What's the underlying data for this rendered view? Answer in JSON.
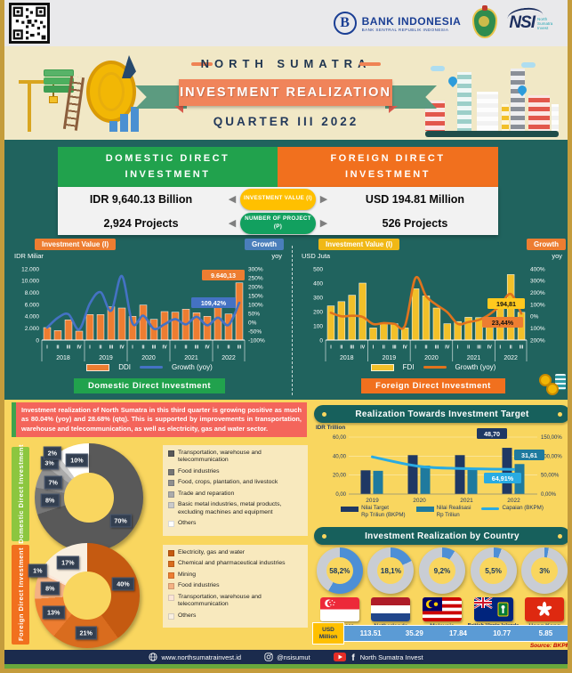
{
  "header": {
    "bank_indonesia": "BANK INDONESIA",
    "bank_indonesia_sub": "BANK SENTRAL REPUBLIK INDONESIA",
    "nsi": "NSI",
    "nsi_sub": "North Sumatra Invest"
  },
  "title": {
    "region": "NORTH SUMATRA",
    "main": "INVESTMENT REALIZATION",
    "quarter": "QUARTER III 2022"
  },
  "comparison": {
    "ddi_title": "DOMESTIC DIRECT INVESTMENT",
    "fdi_title": "FOREIGN DIRECT INVESTMENT",
    "investment_pill": "INVESTMENT VALUE (I)",
    "project_pill": "NUMBER OF PROJECT (P)",
    "ddi_value": "IDR 9,640.13 Billion",
    "fdi_value": "USD 194.81 Million",
    "ddi_projects": "2,924 Projects",
    "fdi_projects": "526 Projects"
  },
  "notice": "Investment realization of North Sumatra in this third quarter is growing positive as much as 80.04% (yoy) and 28.68% (qtq). This is supported by improvements in transportation, warehouse and telecommunication, as well as electricity, gas and water sector.",
  "source": "Source: BKPM",
  "footer": {
    "website": "www.northsumatrainvest.id",
    "instagram": "@nsisumut",
    "social": "North Sumatra Invest"
  },
  "chart_data": [
    {
      "id": "ddi_quarterly",
      "type": "bar",
      "title_badge": "Investment Value (I)",
      "growth_badge": "Growth",
      "growth_unit": "yoy",
      "unit": "IDR Miliar",
      "footer": "Domestic Direct Investment",
      "years": [
        "2018",
        "2019",
        "2020",
        "2021",
        "2022"
      ],
      "quarters": [
        "I",
        "II",
        "III",
        "IV",
        "I",
        "II",
        "III",
        "IV",
        "I",
        "II",
        "III",
        "IV",
        "I",
        "II",
        "III",
        "IV",
        "I",
        "II",
        "III"
      ],
      "series": [
        {
          "name": "DDI",
          "values": [
            2100,
            1600,
            3400,
            1500,
            4300,
            4300,
            5600,
            5400,
            4000,
            5900,
            3500,
            4800,
            4700,
            5200,
            4600,
            4000,
            5900,
            4400,
            9640.13
          ]
        },
        {
          "name": "Growth (yoy)",
          "values": [
            -30,
            25,
            45,
            -40,
            105,
            169,
            65,
            260,
            -7,
            37,
            -37,
            -11,
            18,
            -12,
            31,
            -17,
            26,
            -15,
            109.42
          ]
        }
      ],
      "ylim": [
        0,
        12000
      ],
      "y2lim": [
        -100,
        300
      ],
      "yticks": [
        "12.000",
        "10.000",
        "8.000",
        "6.000",
        "4.000",
        "2.000",
        "0"
      ],
      "y2ticks": [
        "300%",
        "250%",
        "200%",
        "150%",
        "100%",
        "50%",
        "0%",
        "-50%",
        "-100%"
      ],
      "callout_value": "9.640,13",
      "callout_growth": "109,42%"
    },
    {
      "id": "fdi_quarterly",
      "type": "bar",
      "title_badge": "Investment Value (I)",
      "growth_badge": "Growth",
      "growth_unit": "yoy",
      "unit": "USD Juta",
      "footer": "Foreign Direct Investment",
      "years": [
        "2018",
        "2019",
        "2020",
        "2021",
        "2022"
      ],
      "quarters": [
        "I",
        "II",
        "III",
        "IV",
        "I",
        "II",
        "III",
        "IV",
        "I",
        "II",
        "III",
        "IV",
        "I",
        "II",
        "III",
        "IV",
        "I",
        "II",
        "III"
      ],
      "series": [
        {
          "name": "FDI",
          "values": [
            240,
            270,
            315,
            400,
            85,
            115,
            115,
            85,
            360,
            310,
            225,
            115,
            130,
            160,
            158,
            135,
            250,
            460,
            194.81
          ]
        },
        {
          "name": "Growth (yoy)",
          "values": [
            30,
            0,
            5,
            -5,
            -65,
            -57,
            -63,
            -79,
            324,
            170,
            96,
            35,
            -64,
            -48,
            -30,
            17,
            92,
            188,
            23.44
          ]
        }
      ],
      "ylim": [
        0,
        500
      ],
      "y2lim": [
        -200,
        400
      ],
      "yticks": [
        "500",
        "400",
        "300",
        "200",
        "100",
        "0"
      ],
      "y2ticks": [
        "400%",
        "300%",
        "200%",
        "100%",
        "0%",
        "100%",
        "200%"
      ],
      "callout_value": "194,81",
      "callout_growth": "23,44%"
    },
    {
      "id": "realization_target",
      "type": "bar",
      "title": "Realization Towards Investment Target",
      "unit": "IDR Trillion",
      "categories": [
        "2019",
        "2020",
        "2021",
        "2022"
      ],
      "series": [
        {
          "name": "Nilai Target|Rp Triliun (BKPM)",
          "values": [
            25,
            41,
            41,
            48.7
          ]
        },
        {
          "name": "Nilai Realisasi|Rp Triliun",
          "values": [
            24.5,
            30,
            27.5,
            31.61
          ]
        },
        {
          "name": "Capaian (BKPM)",
          "values": [
            98,
            73,
            67,
            64.91
          ]
        }
      ],
      "ylim": [
        0,
        60
      ],
      "y2lim": [
        0,
        150
      ],
      "yticks": [
        "60,00",
        "40,00",
        "20,00",
        "0,00"
      ],
      "y2ticks": [
        "150,00%",
        "100,00%",
        "50,00%",
        "0,00%"
      ],
      "callouts": {
        "target": "48,70",
        "realization": "31,61",
        "capaian": "64,91%"
      }
    },
    {
      "id": "ddi_sectors",
      "type": "pie",
      "side_label": "Domestic Direct Investment",
      "segments": [
        {
          "label": "Transportation, warehouse and telecommunication",
          "value": 70,
          "display": "70%",
          "color": "#595959"
        },
        {
          "label": "Food industries",
          "value": 8,
          "display": "8%",
          "color": "#767676"
        },
        {
          "label": "Food, crops, plantation, and livestock",
          "value": 7,
          "display": "7%",
          "color": "#8F8F8F"
        },
        {
          "label": "Trade and reparation",
          "value": 3,
          "display": "3%",
          "color": "#ABABAB"
        },
        {
          "label": "Basic metal industries, metal products, excluding machines and equipment",
          "value": 2,
          "display": "2%",
          "color": "#CACACA"
        },
        {
          "label": "Others",
          "value": 10,
          "display": "10%",
          "color": "#FFFFFF"
        }
      ]
    },
    {
      "id": "fdi_sectors",
      "type": "pie",
      "side_label": "Foreign Direct Investment",
      "segments": [
        {
          "label": "Electricity, gas and water",
          "value": 40,
          "display": "40%",
          "color": "#C55A11"
        },
        {
          "label": "Chemical and pharmaceutical industries",
          "value": 21,
          "display": "21%",
          "color": "#D96C1E"
        },
        {
          "label": "Mining",
          "value": 13,
          "display": "13%",
          "color": "#ED7D31"
        },
        {
          "label": "Food industries",
          "value": 8,
          "display": "8%",
          "color": "#F4B183"
        },
        {
          "label": "Transportation, warehouse and telecommunication",
          "value": 1,
          "display": "1%",
          "color": "#FBE5D6"
        },
        {
          "label": "Others",
          "value": 17,
          "display": "17%",
          "color": "#F9EFE0"
        }
      ]
    },
    {
      "id": "by_country",
      "type": "donut-gauges",
      "title": "Investment Realization by Country",
      "unit_label": "USD Million",
      "items": [
        {
          "country": "Singapore",
          "share": "58,2%",
          "share_value": 58.2,
          "usd_million": "113.51"
        },
        {
          "country": "Netherlands",
          "share": "18,1%",
          "share_value": 18.1,
          "usd_million": "35.29"
        },
        {
          "country": "Malaysia",
          "share": "9,2%",
          "share_value": 9.2,
          "usd_million": "17.84"
        },
        {
          "country": "British Virgin Islands",
          "share": "5,5%",
          "share_value": 5.5,
          "usd_million": "10.77"
        },
        {
          "country": "Hong Kong",
          "share": "3%",
          "share_value": 3,
          "usd_million": "5.85"
        }
      ]
    }
  ]
}
